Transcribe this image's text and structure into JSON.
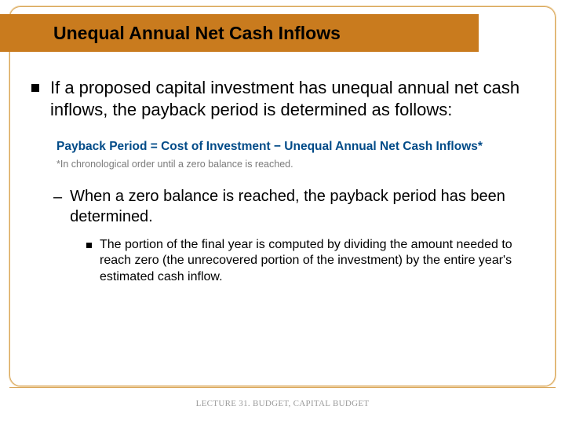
{
  "colors": {
    "title_bar_bg": "#c97b1e",
    "frame_border": "#d9a65a",
    "formula_color": "#024b88",
    "note_color": "#7a7a7a",
    "footer_color": "#9a9a9a",
    "text_color": "#000000",
    "background": "#ffffff"
  },
  "title": "Unequal Annual Net Cash Inflows",
  "bullet1": "If a proposed capital investment has unequal annual net cash inflows, the payback period is determined as follows:",
  "formula": "Payback Period = Cost of Investment − Unequal Annual Net Cash Inflows*",
  "formula_note": "*In chronological order until a zero balance is reached.",
  "bullet2": "When a zero balance is reached, the payback period has been determined.",
  "bullet3": "The portion of the final year is computed by dividing the amount needed to reach zero (the unrecovered portion of the investment) by the entire year's estimated cash inflow.",
  "footer": "LECTURE 31. BUDGET, CAPITAL BUDGET"
}
